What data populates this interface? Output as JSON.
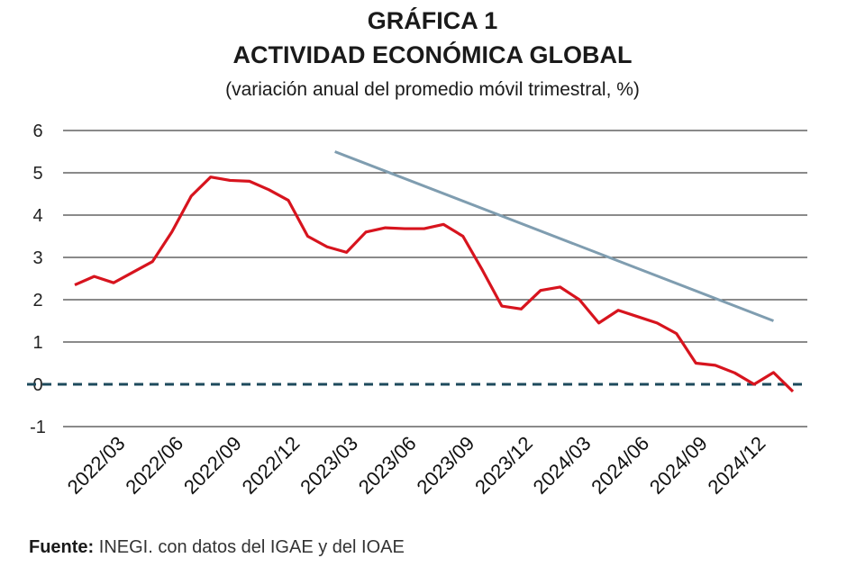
{
  "title_line1": "GRÁFICA 1",
  "title_line2": "ACTIVIDAD ECONÓMICA GLOBAL",
  "subtitle": "(variación anual del promedio móvil trimestral, %)",
  "source_label": "Fuente:",
  "source_text": "INEGI. con datos del IGAE y del IOAE",
  "chart_data": {
    "type": "line",
    "title": "ACTIVIDAD ECONÓMICA GLOBAL",
    "subtitle": "(variación anual del promedio móvil trimestral, %)",
    "ylim": [
      -1,
      6
    ],
    "yticks": [
      "6",
      "5",
      "4",
      "3",
      "2",
      "1",
      "0",
      "-1"
    ],
    "grid": true,
    "x_tick_labels": [
      "2022/03",
      "2022/06",
      "2022/09",
      "2022/12",
      "2023/03",
      "2023/06",
      "2023/09",
      "2023/12",
      "2024/03",
      "2024/06",
      "2024/09",
      "2024/12"
    ],
    "x_tick_months": [
      2,
      5,
      8,
      11,
      14,
      17,
      20,
      23,
      26,
      29,
      32,
      35
    ],
    "series": [
      {
        "color": "#d7141e",
        "values": [
          2.35,
          2.55,
          2.4,
          2.65,
          2.9,
          3.6,
          4.45,
          4.9,
          4.82,
          4.8,
          4.6,
          4.35,
          3.5,
          3.25,
          3.12,
          3.6,
          3.7,
          3.68,
          3.68,
          3.78,
          3.5,
          2.7,
          1.85,
          1.78,
          2.22,
          2.3,
          2.0,
          1.45,
          1.75,
          1.6,
          1.45,
          1.2,
          0.5,
          0.45,
          0.27,
          0.0,
          0.28,
          -0.17
        ]
      },
      {
        "type": "trend",
        "color": "#7f9db0",
        "start": {
          "month": 13.4,
          "value": 5.5
        },
        "end": {
          "month": 36,
          "value": 1.5
        }
      }
    ],
    "reference_line": {
      "value": 0,
      "style": "dashed",
      "color": "#1d4a5c"
    }
  }
}
